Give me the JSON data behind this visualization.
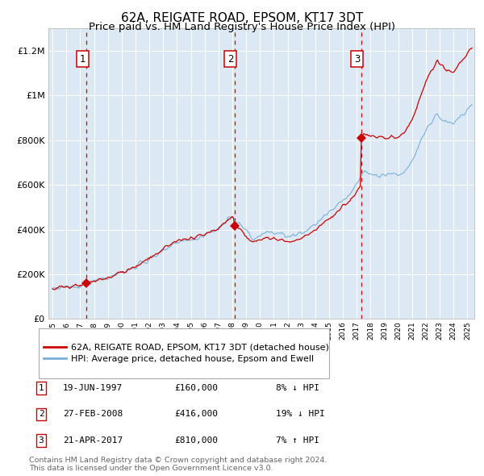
{
  "title": "62A, REIGATE ROAD, EPSOM, KT17 3DT",
  "subtitle": "Price paid vs. HM Land Registry's House Price Index (HPI)",
  "transactions": [
    {
      "num": 1,
      "date_str": "19-JUN-1997",
      "year": 1997.47,
      "price": 160000,
      "pct": "8%",
      "dir": "↓"
    },
    {
      "num": 2,
      "date_str": "27-FEB-2008",
      "year": 2008.16,
      "price": 416000,
      "pct": "19%",
      "dir": "↓"
    },
    {
      "num": 3,
      "date_str": "21-APR-2017",
      "year": 2017.31,
      "price": 810000,
      "pct": "7%",
      "dir": "↑"
    }
  ],
  "legend_line1": "62A, REIGATE ROAD, EPSOM, KT17 3DT (detached house)",
  "legend_line2": "HPI: Average price, detached house, Epsom and Ewell",
  "footnote1": "Contains HM Land Registry data © Crown copyright and database right 2024.",
  "footnote2": "This data is licensed under the Open Government Licence v3.0.",
  "ylim": [
    0,
    1300000
  ],
  "xlim_start": 1994.7,
  "xlim_end": 2025.5,
  "plot_bg": "#dce9f5",
  "hpi_color": "#7ab0d8",
  "price_color": "#cc0000",
  "dashed_color": "#cc0000",
  "marker_color": "#cc0000",
  "grid_color": "#c8d8e8",
  "title_fontsize": 11,
  "subtitle_fontsize": 9.5
}
